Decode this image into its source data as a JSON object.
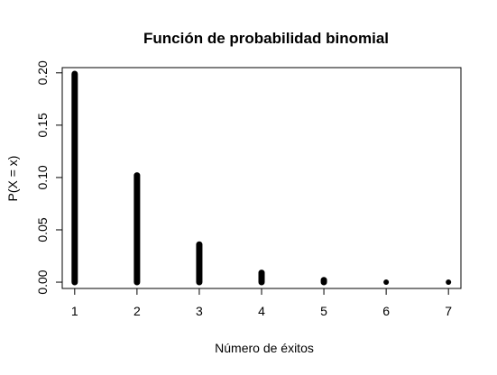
{
  "chart_data": {
    "type": "scatter",
    "title": "Función de probabilidad binomial",
    "xlabel": "Número de éxitos",
    "ylabel": "P(X = x)",
    "xlim": [
      0.8,
      7.2
    ],
    "ylim": [
      -0.006,
      0.205
    ],
    "x_ticks": [
      1,
      2,
      3,
      4,
      5,
      6,
      7
    ],
    "x_tick_labels": [
      "1",
      "2",
      "3",
      "4",
      "5",
      "6",
      "7"
    ],
    "y_ticks": [
      0.0,
      0.05,
      0.1,
      0.15,
      0.2
    ],
    "y_tick_labels": [
      "0.00",
      "0.05",
      "0.10",
      "0.15",
      "0.20"
    ],
    "grid": false,
    "legend": "none",
    "marker_color": "#000000",
    "series": [
      {
        "points": [
          {
            "x": 1,
            "y_min": 0.0,
            "y_max": 0.199
          },
          {
            "x": 2,
            "y_min": 0.0,
            "y_max": 0.102
          },
          {
            "x": 3,
            "y_min": 0.0,
            "y_max": 0.036
          },
          {
            "x": 4,
            "y_min": 0.0,
            "y_max": 0.009
          },
          {
            "x": 5,
            "y_min": 0.0,
            "y_max": 0.002
          },
          {
            "x": 6,
            "y_min": 0.0,
            "y_max": 0.0
          },
          {
            "x": 7,
            "y_min": 0.0,
            "y_max": 0.0
          }
        ]
      }
    ]
  }
}
